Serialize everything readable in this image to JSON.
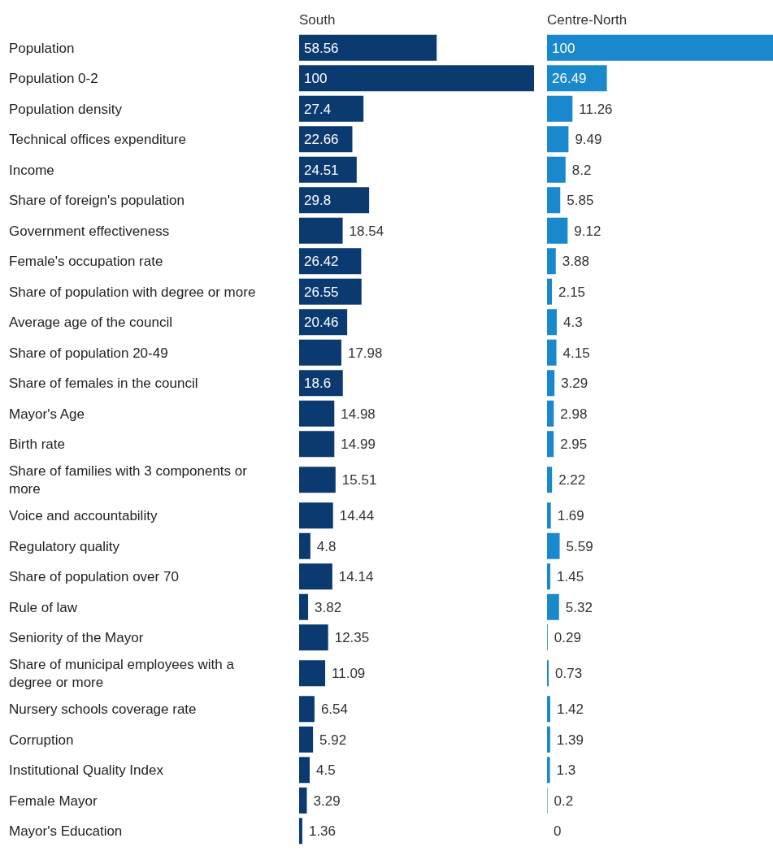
{
  "chart_data": [
    {
      "type": "bar",
      "orientation": "horizontal",
      "title": "South",
      "data_labels": true,
      "categories": [
        "Population",
        "Population 0-2",
        "Population density",
        "Technical offices expenditure",
        "Income",
        "Share of foreign's population",
        "Government effectiveness",
        "Female's occupation rate",
        "Share of population with degree or more",
        "Average age of the council",
        "Share of population 20-49",
        "Share of females in the council",
        "Mayor's Age",
        "Birth rate",
        "Share of families with 3 components or more",
        "Voice and accountability",
        "Regulatory quality",
        "Share of population over 70",
        "Rule of law",
        "Seniority of the Mayor",
        "Share of municipal employees with a degree or more",
        "Nursery schools coverage rate",
        "Corruption",
        "Institutional Quality Index",
        "Female Mayor",
        "Mayor's Education"
      ],
      "values": [
        58.56,
        100,
        27.4,
        22.66,
        24.51,
        29.8,
        18.54,
        26.42,
        26.55,
        20.46,
        17.98,
        18.6,
        14.98,
        14.99,
        15.51,
        14.44,
        4.8,
        14.14,
        3.82,
        12.35,
        11.09,
        6.54,
        5.92,
        4.5,
        3.29,
        1.36
      ],
      "color": "#0b3a70"
    },
    {
      "type": "bar",
      "orientation": "horizontal",
      "title": "Centre-North",
      "data_labels": true,
      "tick_labels": false,
      "categories": [
        "Population",
        "Population 0-2",
        "Population density",
        "Technical offices expenditure",
        "Income",
        "Share of foreign's population",
        "Government effectiveness",
        "Female's occupation rate",
        "Share of population with degree or more",
        "Average age of the council",
        "Share of population 20-49",
        "Share of females in the council",
        "Mayor's Age",
        "Birth rate",
        "Share of families with 3 components or more",
        "Voice and accountability",
        "Regulatory quality",
        "Share of population over 70",
        "Rule of law",
        "Seniority of the Mayor",
        "Share of municipal employees with a degree or more",
        "Nursery schools coverage rate",
        "Corruption",
        "Institutional Quality Index",
        "Female Mayor",
        "Mayor's Education"
      ],
      "values": [
        100,
        26.49,
        11.26,
        9.49,
        8.2,
        5.85,
        9.12,
        3.88,
        2.15,
        4.3,
        4.15,
        3.29,
        2.98,
        2.95,
        2.22,
        1.69,
        5.59,
        1.45,
        5.32,
        0.29,
        0.73,
        1.42,
        1.39,
        1.3,
        0.2,
        0
      ],
      "color": "#1a88cc"
    }
  ]
}
